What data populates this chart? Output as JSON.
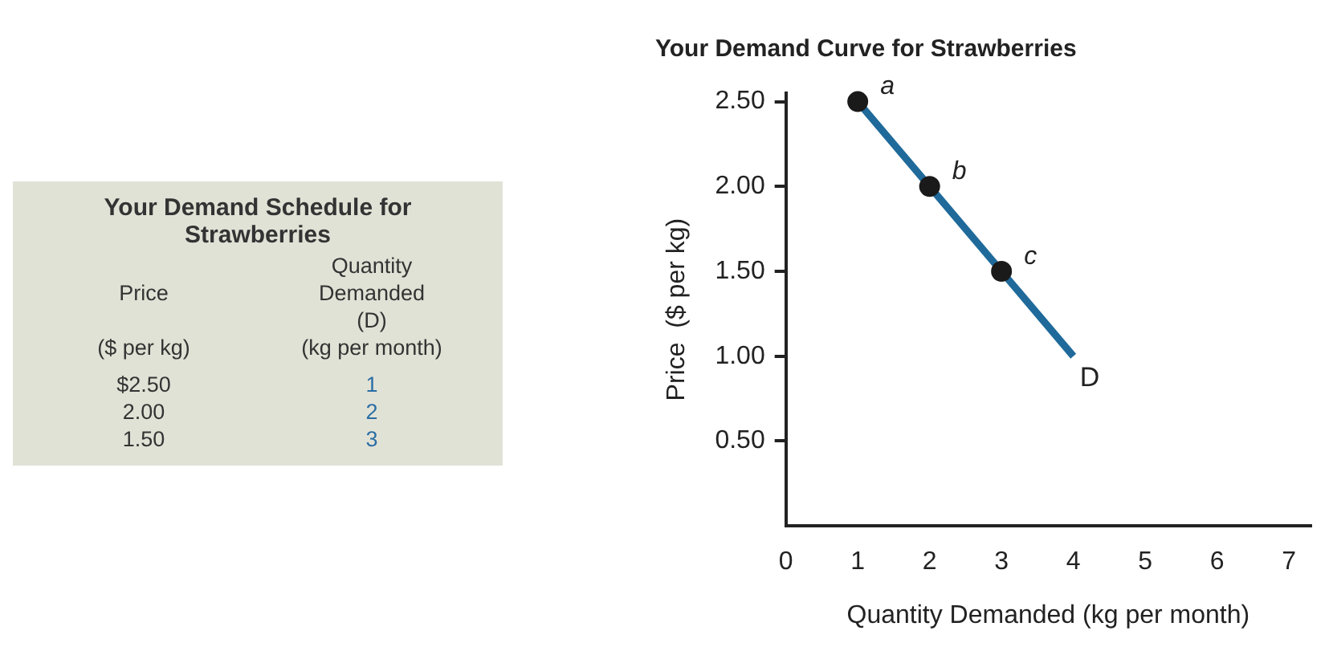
{
  "chart_data": [
    {
      "type": "other",
      "title": "Your Demand Schedule for Strawberries",
      "annotations": [
        "Price",
        "Quantity Demanded (D)",
        "($ per kg)",
        "(kg per month)",
        "$2.50",
        "1",
        "2.00",
        "2",
        "1.50",
        "3"
      ]
    },
    {
      "type": "line",
      "title": "Your Demand Curve for Strawberries",
      "xlabel": "Quantity Demanded (kg per month)",
      "ylabel": "Price  ($ per kg)",
      "xlim": [
        0,
        7.3
      ],
      "xticks": [
        0,
        1,
        2,
        3,
        4,
        5,
        6,
        7
      ],
      "ylim": [
        0,
        2.55
      ],
      "yticks": [
        {
          "value": 0.5,
          "label": "0.50"
        },
        {
          "value": 1,
          "label": "1.00"
        },
        {
          "value": 1.5,
          "label": "1.50"
        },
        {
          "value": 2,
          "label": "2.00"
        },
        {
          "value": 2.5,
          "label": "2.50"
        }
      ],
      "series": [
        {
          "type": "line",
          "name": "D",
          "x": [
            1,
            4
          ],
          "values": [
            2.5,
            1.0
          ],
          "color": "#1f6a9a",
          "marker": "none",
          "line_style": "solid"
        },
        {
          "type": "scatter",
          "x": [
            1,
            2,
            3
          ],
          "values": [
            2.5,
            2.0,
            1.5
          ],
          "color": "#1a1a1a",
          "marker": "circle"
        }
      ],
      "annotations": [
        {
          "text": "a",
          "x": 1,
          "y": 2.5
        },
        {
          "text": "b",
          "x": 2,
          "y": 2.0
        },
        {
          "text": "c",
          "x": 3,
          "y": 1.5
        }
      ]
    }
  ]
}
